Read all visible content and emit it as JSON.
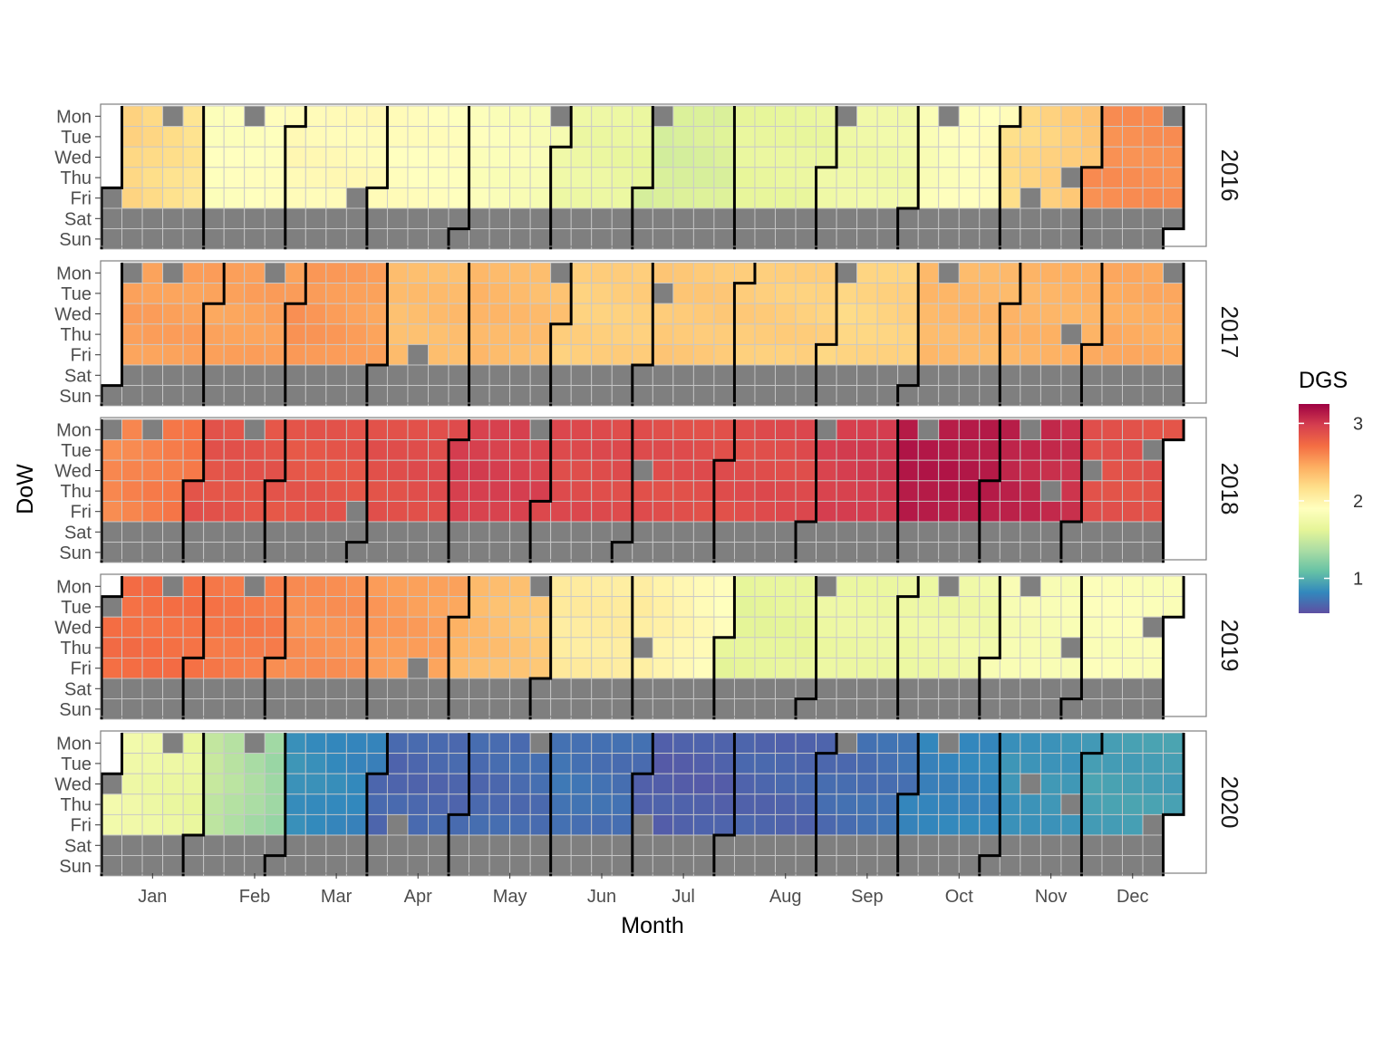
{
  "chart_data": {
    "type": "heatmap",
    "title": "",
    "xlabel": "Month",
    "ylabel": "DoW",
    "legend": {
      "title": "DGS",
      "position": "right",
      "ticks": [
        1,
        2,
        3
      ],
      "range": [
        0.55,
        3.25
      ]
    },
    "month_labels": [
      "Jan",
      "Feb",
      "Mar",
      "Apr",
      "May",
      "Jun",
      "Jul",
      "Aug",
      "Sep",
      "Oct",
      "Nov",
      "Dec"
    ],
    "day_labels": [
      "Mon",
      "Tue",
      "Wed",
      "Thu",
      "Fri",
      "Sat",
      "Sun"
    ],
    "missing_color": "#7f7f7f",
    "panels": [
      {
        "year": "2016",
        "monthly_dgs": [
          2.25,
          1.88,
          1.95,
          1.92,
          1.87,
          1.73,
          1.55,
          1.66,
          1.72,
          1.82,
          2.18,
          2.57
        ],
        "missing": [
          "2016-01-01",
          "2016-01-18",
          "2016-02-15",
          "2016-03-25",
          "2016-05-30",
          "2016-07-04",
          "2016-09-05",
          "2016-10-10",
          "2016-11-11",
          "2016-11-24",
          "2016-12-26"
        ]
      },
      {
        "year": "2017",
        "monthly_dgs": [
          2.5,
          2.48,
          2.55,
          2.35,
          2.4,
          2.25,
          2.3,
          2.28,
          2.2,
          2.38,
          2.4,
          2.45
        ],
        "missing": [
          "2017-01-02",
          "2017-01-16",
          "2017-02-20",
          "2017-04-14",
          "2017-05-29",
          "2017-07-04",
          "2017-09-04",
          "2017-10-09",
          "2017-11-23",
          "2017-12-25"
        ]
      },
      {
        "year": "2018",
        "monthly_dgs": [
          2.58,
          2.86,
          2.84,
          2.87,
          2.98,
          2.91,
          2.89,
          2.89,
          2.95,
          3.15,
          3.12,
          2.87
        ],
        "missing": [
          "2018-01-01",
          "2018-01-15",
          "2018-02-19",
          "2018-03-30",
          "2018-05-28",
          "2018-07-04",
          "2018-09-03",
          "2018-10-08",
          "2018-11-12",
          "2018-11-22",
          "2018-12-05",
          "2018-12-25"
        ]
      },
      {
        "year": "2019",
        "monthly_dgs": [
          2.71,
          2.68,
          2.57,
          2.53,
          2.4,
          2.07,
          2.06,
          1.63,
          1.7,
          1.71,
          1.81,
          1.86
        ],
        "missing": [
          "2019-01-01",
          "2019-01-21",
          "2019-02-18",
          "2019-04-19",
          "2019-05-27",
          "2019-07-04",
          "2019-09-02",
          "2019-10-14",
          "2019-11-11",
          "2019-11-28",
          "2019-12-25"
        ]
      },
      {
        "year": "2020",
        "monthly_dgs": [
          1.76,
          1.5,
          0.87,
          0.66,
          0.67,
          0.73,
          0.62,
          0.65,
          0.68,
          0.79,
          0.87,
          0.93
        ],
        "missing": [
          "2020-01-01",
          "2020-01-20",
          "2020-02-17",
          "2020-04-10",
          "2020-05-25",
          "2020-07-03",
          "2020-09-07",
          "2020-10-12",
          "2020-11-11",
          "2020-11-26",
          "2020-12-25"
        ]
      }
    ]
  }
}
